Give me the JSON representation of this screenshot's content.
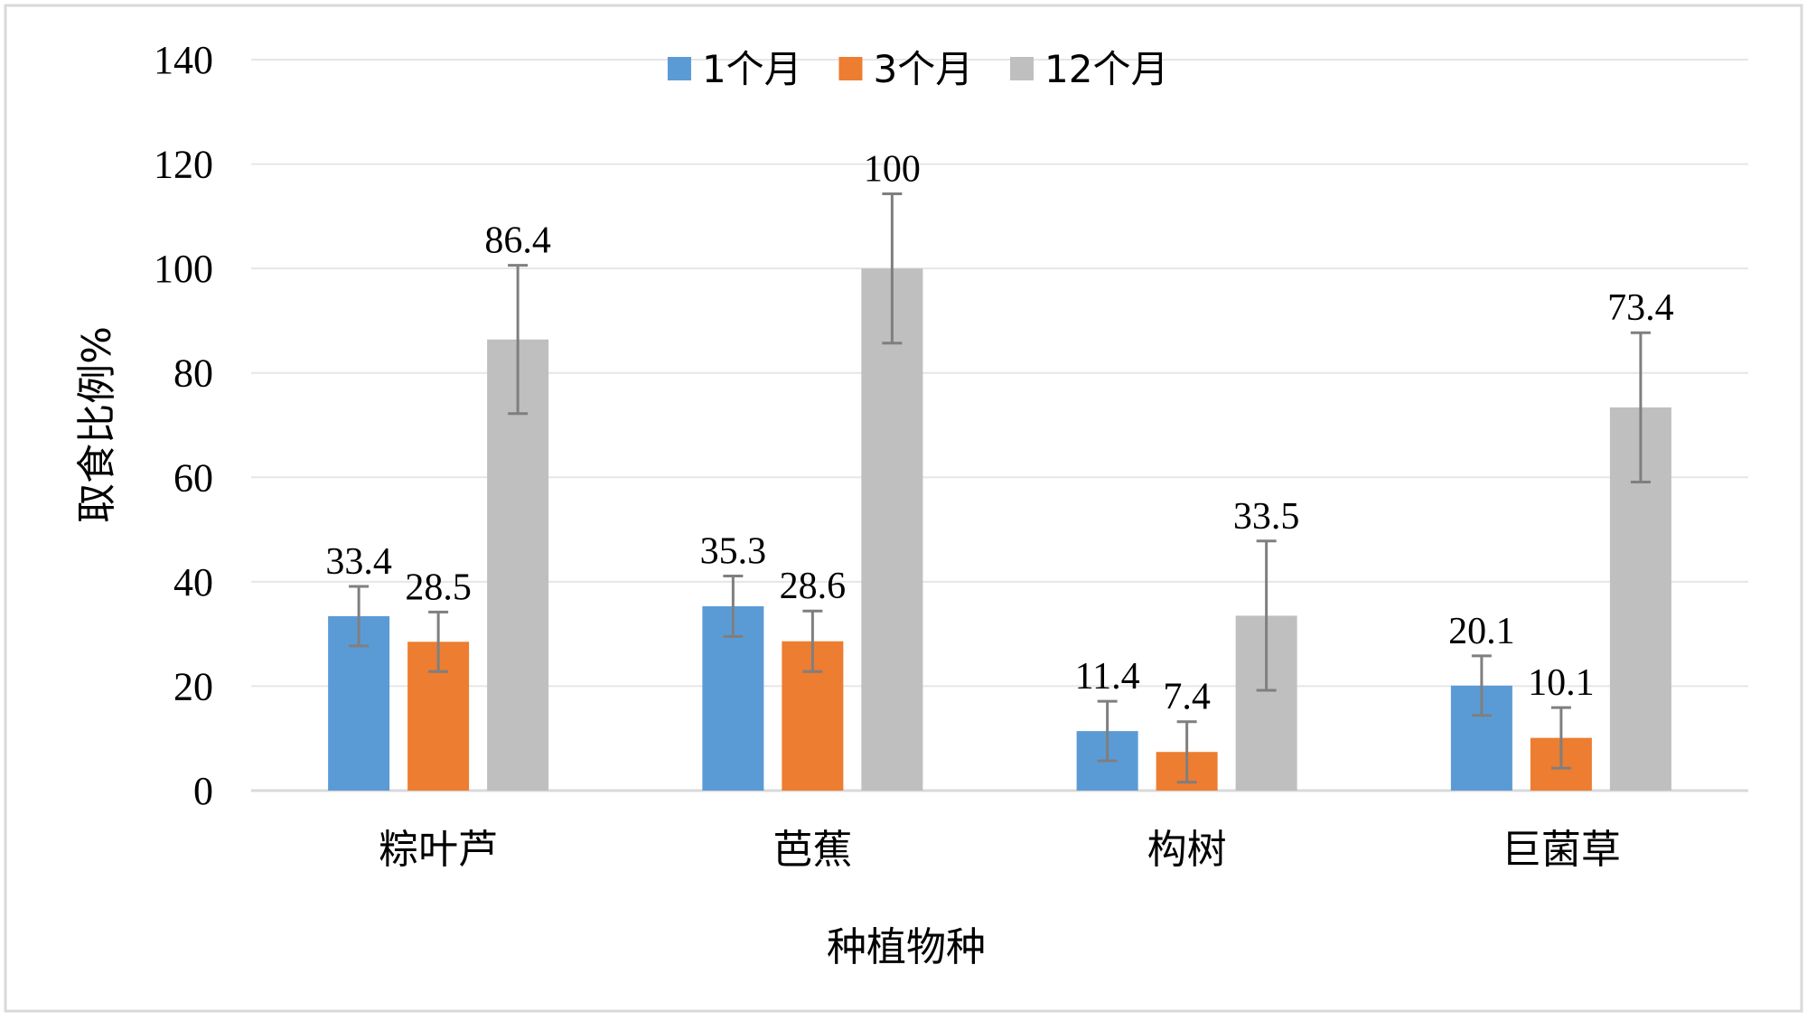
{
  "chart_data": {
    "type": "bar",
    "title": "",
    "xlabel": "种植物种",
    "ylabel": "取食比例%",
    "ylim": [
      0,
      140
    ],
    "yticks": [
      0,
      20,
      40,
      60,
      80,
      100,
      120,
      140
    ],
    "grid": true,
    "legend_position": "top-center",
    "categories": [
      "粽叶芦",
      "芭蕉",
      "构树",
      "巨菌草"
    ],
    "series": [
      {
        "name": "1个月",
        "color": "#5B9BD5",
        "values": [
          33.4,
          35.3,
          11.4,
          20.1
        ],
        "labels": [
          "33.4",
          "35.3",
          "11.4",
          "20.1"
        ],
        "error": [
          5.7,
          5.8,
          5.7,
          5.7
        ]
      },
      {
        "name": "3个月",
        "color": "#ED7D31",
        "values": [
          28.5,
          28.6,
          7.4,
          10.1
        ],
        "labels": [
          "28.5",
          "28.6",
          "7.4",
          "10.1"
        ],
        "error": [
          5.7,
          5.8,
          5.8,
          5.8
        ]
      },
      {
        "name": "12个月",
        "color": "#BFBFBF",
        "values": [
          86.4,
          100,
          33.5,
          73.4
        ],
        "labels": [
          "86.4",
          "100",
          "33.5",
          "73.4"
        ],
        "error": [
          14.2,
          14.3,
          14.3,
          14.3
        ]
      }
    ]
  }
}
